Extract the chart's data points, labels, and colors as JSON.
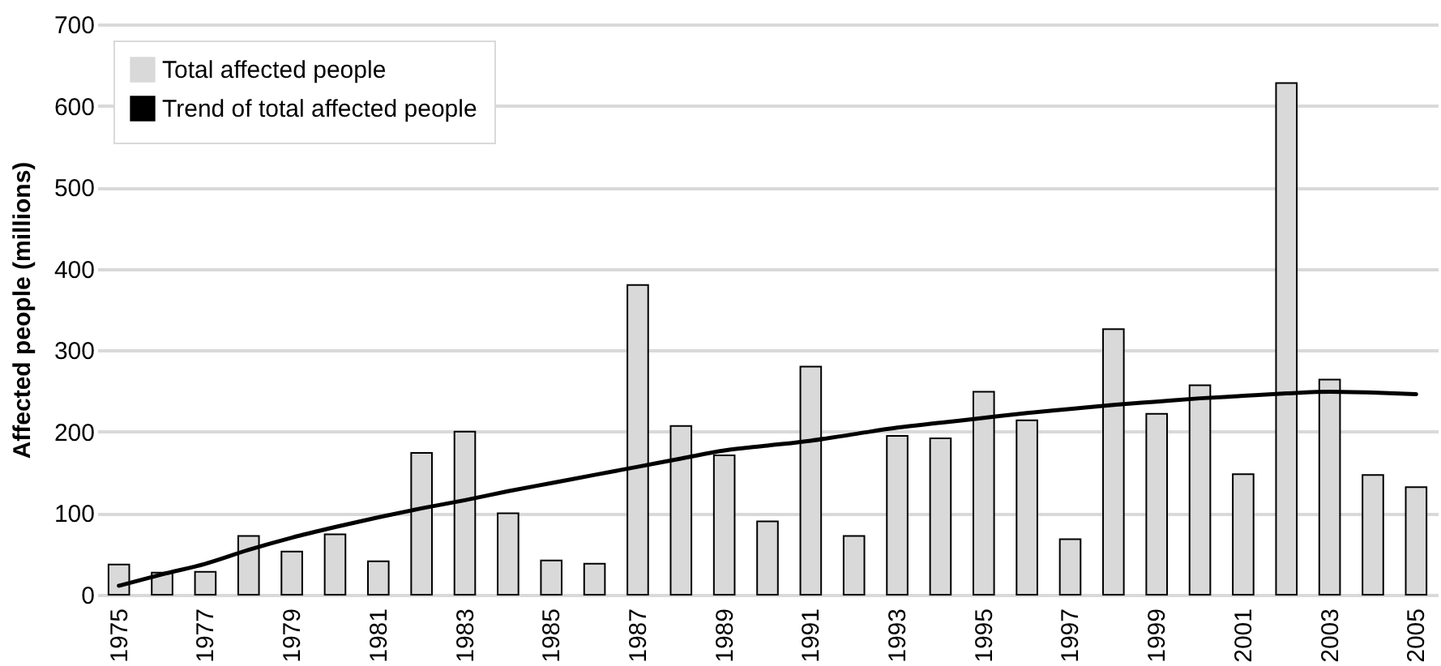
{
  "chart_data": {
    "type": "bar",
    "ylabel": "Affected people (millions)",
    "categories": [
      "1975",
      null,
      "1977",
      null,
      "1979",
      null,
      "1981",
      null,
      "1983",
      null,
      "1985",
      null,
      "1987",
      null,
      "1989",
      null,
      "1991",
      null,
      "1993",
      null,
      "1995",
      null,
      "1997",
      null,
      "1999",
      null,
      "2001",
      null,
      "2003",
      null,
      "2005"
    ],
    "series": [
      {
        "name": "Total affected people",
        "color": "#d9d9d9",
        "values": [
          37,
          27,
          28,
          72,
          53,
          74,
          41,
          174,
          200,
          100,
          42,
          38,
          380,
          207,
          171,
          90,
          280,
          72,
          195,
          192,
          249,
          214,
          68,
          326,
          222,
          257,
          148,
          628,
          264,
          147,
          132
        ]
      },
      {
        "name": "Trend of total affected people",
        "type": "line",
        "color": "#000000",
        "values": [
          11,
          25,
          38,
          55,
          70,
          83,
          95,
          106,
          116,
          127,
          137,
          147,
          157,
          167,
          177,
          183,
          189,
          197,
          205,
          211,
          217,
          223,
          228,
          233,
          237,
          241,
          244,
          247,
          249,
          248,
          246
        ]
      }
    ],
    "ylim": [
      0,
      700
    ],
    "yticks": [
      0,
      100,
      200,
      300,
      400,
      500,
      600,
      700
    ],
    "grid": "y",
    "legend": "top left",
    "marker": "none",
    "line_style": "solid"
  }
}
